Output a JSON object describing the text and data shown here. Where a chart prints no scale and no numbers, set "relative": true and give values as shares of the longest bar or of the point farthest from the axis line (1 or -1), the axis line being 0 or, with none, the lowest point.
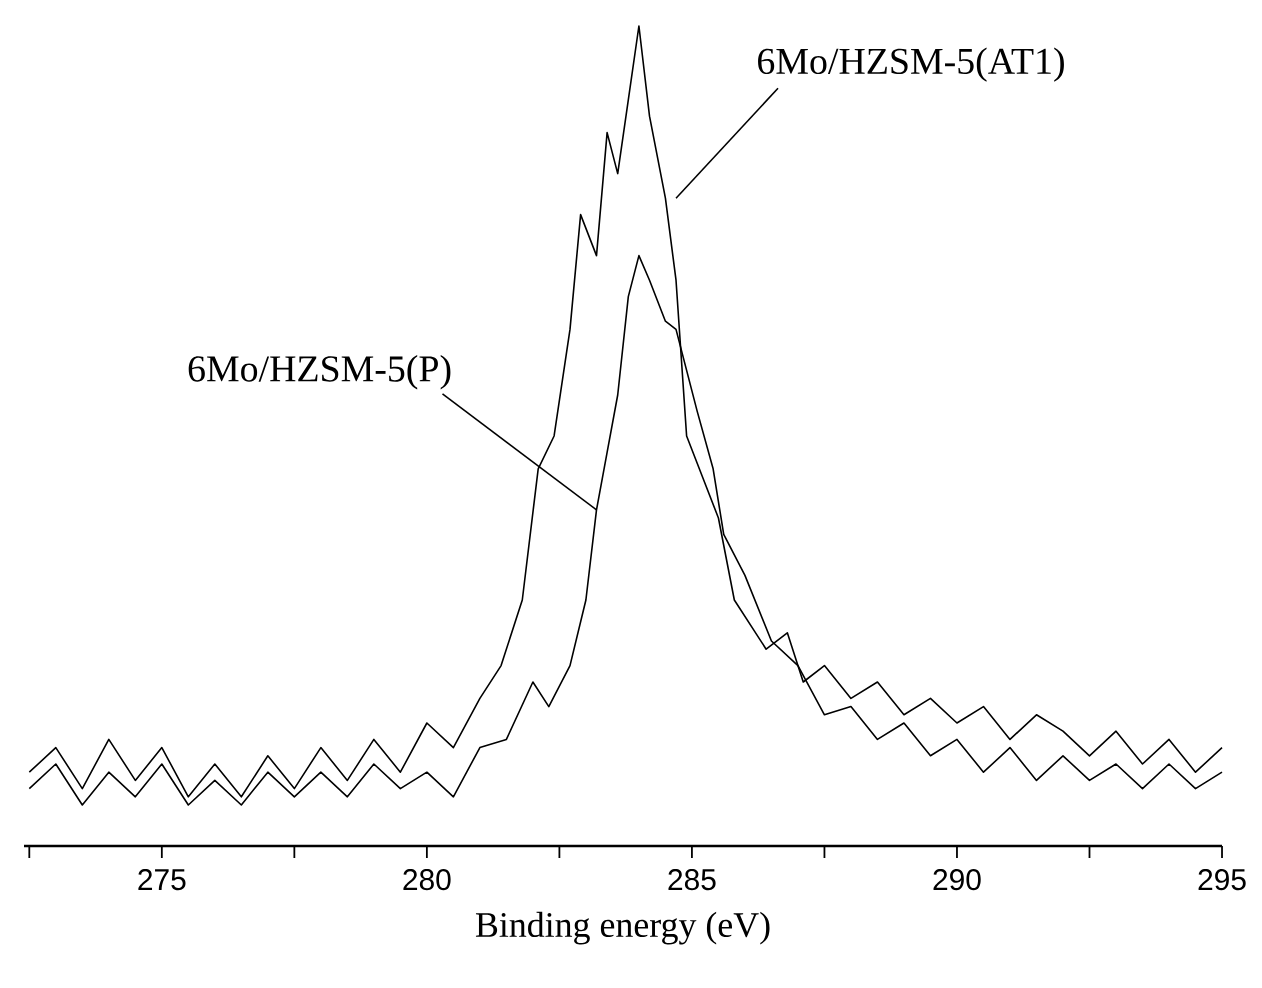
{
  "chart_data": {
    "type": "line",
    "xlabel": "Binding energy (eV)",
    "relative": true,
    "xlim": [
      272.4,
      295
    ],
    "xticks": [
      {
        "value": 272.5,
        "label": null
      },
      275,
      {
        "value": 277.5,
        "label": null
      },
      280,
      {
        "value": 282.5,
        "label": null
      },
      285,
      {
        "value": 287.5,
        "label": null
      },
      290,
      {
        "value": 292.5,
        "label": null
      },
      295
    ],
    "series": [
      {
        "color": "#000000",
        "x": [
          272.5,
          273,
          273.5,
          274,
          274.5,
          275,
          275.5,
          276,
          276.5,
          277,
          277.5,
          278,
          278.5,
          279,
          279.5,
          280,
          280.5,
          281,
          281.4,
          281.8,
          282.1,
          282.4,
          282.7,
          282.9,
          283.2,
          283.4,
          283.6,
          283.8,
          284,
          284.2,
          284.5,
          284.7,
          284.9,
          285.2,
          285.5,
          285.8,
          286,
          286.4,
          286.8,
          287.1,
          287.5,
          288,
          288.5,
          289,
          289.5,
          290,
          290.5,
          291,
          291.5,
          292,
          292.5,
          293,
          293.5,
          294,
          294.5,
          295
        ],
        "values": [
          0.09,
          0.12,
          0.07,
          0.13,
          0.08,
          0.12,
          0.06,
          0.1,
          0.06,
          0.11,
          0.07,
          0.12,
          0.08,
          0.13,
          0.09,
          0.15,
          0.12,
          0.18,
          0.22,
          0.3,
          0.46,
          0.5,
          0.63,
          0.77,
          0.72,
          0.87,
          0.82,
          0.91,
          1,
          0.89,
          0.79,
          0.69,
          0.5,
          0.45,
          0.4,
          0.3,
          0.28,
          0.24,
          0.26,
          0.2,
          0.22,
          0.18,
          0.2,
          0.16,
          0.18,
          0.15,
          0.17,
          0.13,
          0.16,
          0.14,
          0.11,
          0.14,
          0.1,
          0.13,
          0.09,
          0.12
        ]
      },
      {
        "color": "#000000",
        "x": [
          272.5,
          273,
          273.5,
          274,
          274.5,
          275,
          275.5,
          276,
          276.5,
          277,
          277.5,
          278,
          278.5,
          279,
          279.5,
          280,
          280.5,
          281,
          281.5,
          282,
          282.3,
          282.7,
          283,
          283.2,
          283.4,
          283.6,
          283.8,
          284,
          284.2,
          284.5,
          284.7,
          284.9,
          285.1,
          285.4,
          285.6,
          286,
          286.5,
          287,
          287.5,
          288,
          288.5,
          289,
          289.5,
          290,
          290.5,
          291,
          291.5,
          292,
          292.5,
          293,
          293.5,
          294,
          294.5,
          295
        ],
        "values": [
          0.07,
          0.1,
          0.05,
          0.09,
          0.06,
          0.1,
          0.05,
          0.08,
          0.05,
          0.09,
          0.06,
          0.09,
          0.06,
          0.1,
          0.07,
          0.09,
          0.06,
          0.12,
          0.13,
          0.2,
          0.17,
          0.22,
          0.3,
          0.41,
          0.48,
          0.55,
          0.67,
          0.72,
          0.69,
          0.64,
          0.63,
          0.58,
          0.53,
          0.46,
          0.38,
          0.33,
          0.25,
          0.22,
          0.16,
          0.17,
          0.13,
          0.15,
          0.11,
          0.13,
          0.09,
          0.12,
          0.08,
          0.11,
          0.08,
          0.1,
          0.07,
          0.1,
          0.07,
          0.09
        ]
      }
    ],
    "annotations": [
      {
        "text": "6Mo/HZSM-5(AT1)",
        "x": 284.7,
        "y": 0.79
      },
      {
        "text": "6Mo/HZSM-5(P)",
        "x": 283.2,
        "y": 0.41
      }
    ]
  }
}
